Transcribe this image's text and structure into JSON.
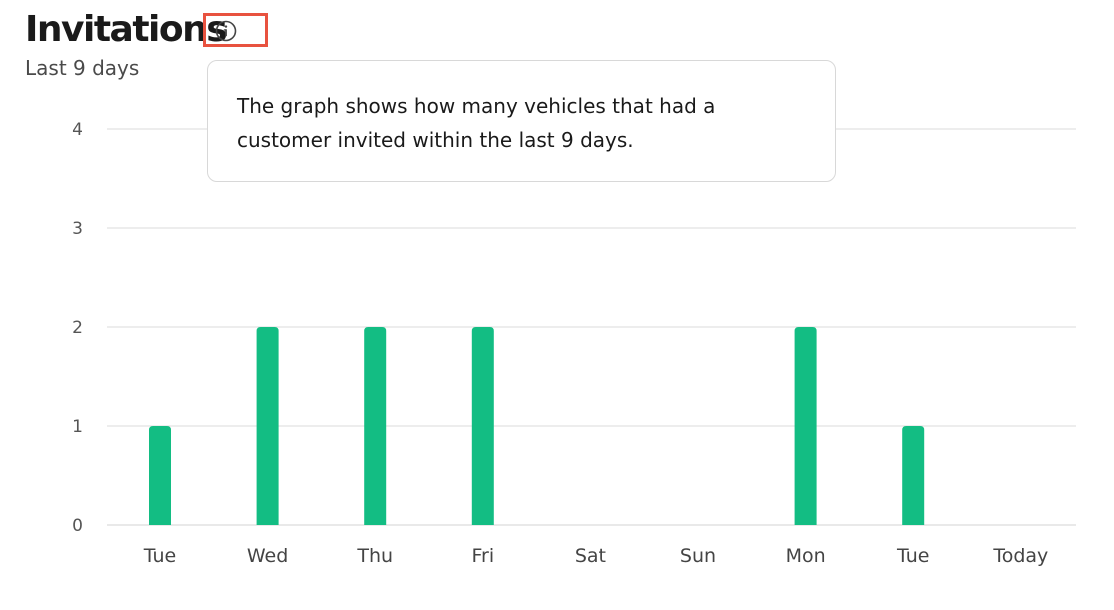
{
  "header": {
    "title": "Invitations",
    "subtitle": "Last 9 days",
    "info_icon": "info-icon"
  },
  "tooltip": {
    "text": "The graph shows how many vehicles that had a\ncustomer invited within the last 9 days."
  },
  "colors": {
    "bar": "#13bd83",
    "grid": "#e2e2e2",
    "highlight": "#e8523f"
  },
  "chart_data": {
    "type": "bar",
    "title": "Invitations",
    "subtitle": "Last 9 days",
    "categories": [
      "Tue",
      "Wed",
      "Thu",
      "Fri",
      "Sat",
      "Sun",
      "Mon",
      "Tue",
      "Today"
    ],
    "values": [
      1,
      2,
      2,
      2,
      0,
      0,
      2,
      1,
      0
    ],
    "ylim": [
      0,
      4
    ],
    "yticks": [
      "0",
      "1",
      "2",
      "3",
      "4"
    ],
    "grid": true,
    "xlabel": "",
    "ylabel": ""
  }
}
